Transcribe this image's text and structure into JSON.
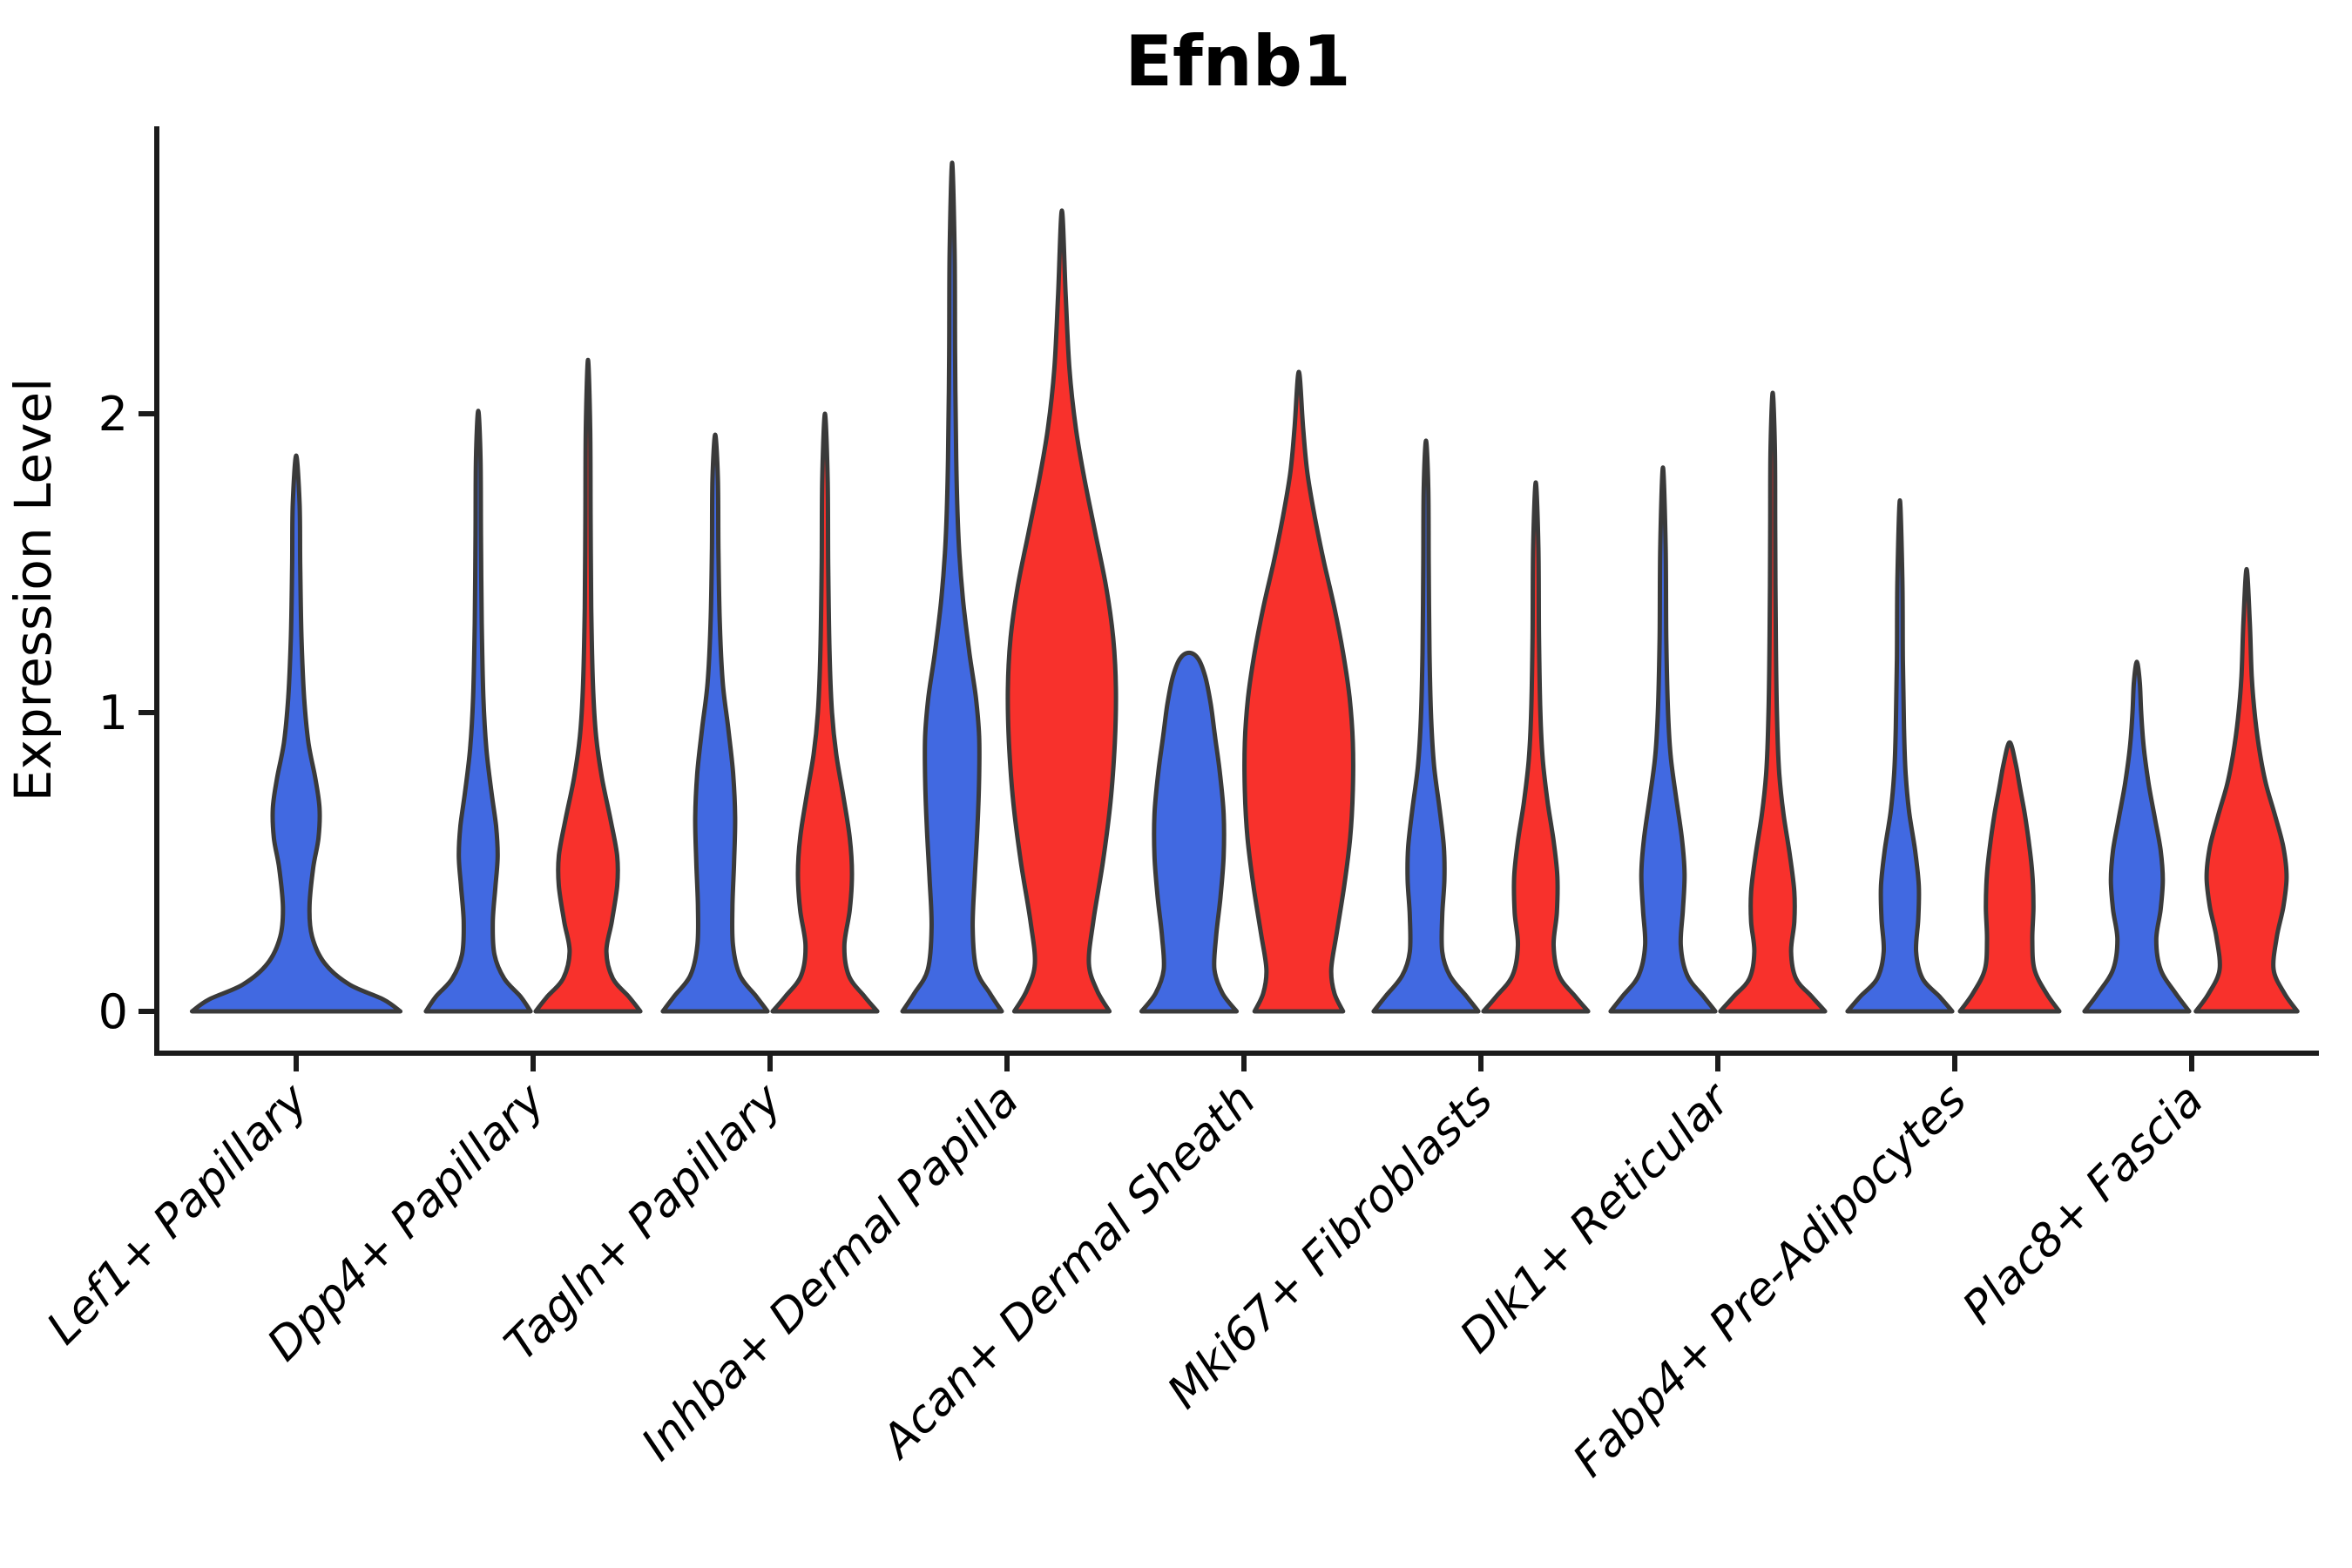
{
  "chart_data": {
    "type": "violin",
    "title": "Efnb1",
    "ylabel": "Expression Level",
    "xlabel": "",
    "ylim": [
      0,
      2.95
    ],
    "yticks": [
      0,
      1,
      2
    ],
    "grid": false,
    "legend_position": "none",
    "categories": [
      "Lef1+ Papillary",
      "Dpp4+ Papillary",
      "Tagln+ Papillary",
      "Inhba+ Dermal Papilla",
      "Acan+ Dermal Sheath",
      "Mki67+ Fibroblasts",
      "Dlk1+ Reticular",
      "Fabp4+ Pre-Adipocytes",
      "Plac8+ Fascia"
    ],
    "groups": [
      {
        "id": "group-blue",
        "color": "#4169e1"
      },
      {
        "id": "group-red",
        "color": "#f8312c"
      }
    ],
    "violins": [
      {
        "category": "Lef1+ Papillary",
        "group": "group-blue",
        "span": "full",
        "max": 1.86,
        "profile": [
          [
            0,
            0.98
          ],
          [
            0.04,
            0.82
          ],
          [
            0.09,
            0.5
          ],
          [
            0.16,
            0.27
          ],
          [
            0.25,
            0.15
          ],
          [
            0.35,
            0.125
          ],
          [
            0.48,
            0.16
          ],
          [
            0.58,
            0.21
          ],
          [
            0.68,
            0.22
          ],
          [
            0.78,
            0.18
          ],
          [
            0.9,
            0.115
          ],
          [
            1.05,
            0.075
          ],
          [
            1.25,
            0.05
          ],
          [
            1.5,
            0.038
          ],
          [
            1.7,
            0.032
          ],
          [
            1.86,
            0
          ]
        ]
      },
      {
        "category": "Dpp4+ Papillary",
        "group": "group-blue",
        "span": "half",
        "max": 2.01,
        "profile": [
          [
            0,
            0.97
          ],
          [
            0.05,
            0.78
          ],
          [
            0.11,
            0.48
          ],
          [
            0.19,
            0.3
          ],
          [
            0.3,
            0.27
          ],
          [
            0.42,
            0.32
          ],
          [
            0.52,
            0.36
          ],
          [
            0.62,
            0.33
          ],
          [
            0.74,
            0.24
          ],
          [
            0.88,
            0.15
          ],
          [
            1.05,
            0.095
          ],
          [
            1.3,
            0.065
          ],
          [
            1.6,
            0.05
          ],
          [
            1.85,
            0.042
          ],
          [
            2.01,
            0
          ]
        ]
      },
      {
        "category": "Dpp4+ Papillary",
        "group": "group-red",
        "span": "half",
        "max": 2.18,
        "profile": [
          [
            0,
            0.97
          ],
          [
            0.05,
            0.75
          ],
          [
            0.11,
            0.46
          ],
          [
            0.2,
            0.34
          ],
          [
            0.3,
            0.44
          ],
          [
            0.42,
            0.54
          ],
          [
            0.52,
            0.54
          ],
          [
            0.64,
            0.42
          ],
          [
            0.78,
            0.26
          ],
          [
            0.92,
            0.15
          ],
          [
            1.1,
            0.09
          ],
          [
            1.35,
            0.06
          ],
          [
            1.65,
            0.048
          ],
          [
            1.95,
            0.04
          ],
          [
            2.18,
            0
          ]
        ]
      },
      {
        "category": "Tagln+ Papillary",
        "group": "group-blue",
        "span": "half",
        "max": 1.93,
        "profile": [
          [
            0,
            0.97
          ],
          [
            0.05,
            0.76
          ],
          [
            0.12,
            0.46
          ],
          [
            0.22,
            0.33
          ],
          [
            0.35,
            0.32
          ],
          [
            0.5,
            0.35
          ],
          [
            0.65,
            0.37
          ],
          [
            0.8,
            0.33
          ],
          [
            0.95,
            0.24
          ],
          [
            1.1,
            0.14
          ],
          [
            1.3,
            0.085
          ],
          [
            1.55,
            0.06
          ],
          [
            1.78,
            0.05
          ],
          [
            1.93,
            0
          ]
        ]
      },
      {
        "category": "Tagln+ Papillary",
        "group": "group-red",
        "span": "half",
        "max": 2.0,
        "profile": [
          [
            0,
            0.97
          ],
          [
            0.05,
            0.73
          ],
          [
            0.12,
            0.44
          ],
          [
            0.22,
            0.36
          ],
          [
            0.34,
            0.46
          ],
          [
            0.46,
            0.5
          ],
          [
            0.58,
            0.46
          ],
          [
            0.72,
            0.34
          ],
          [
            0.86,
            0.21
          ],
          [
            1.0,
            0.13
          ],
          [
            1.2,
            0.085
          ],
          [
            1.5,
            0.06
          ],
          [
            1.78,
            0.05
          ],
          [
            2.0,
            0
          ]
        ]
      },
      {
        "category": "Inhba+ Dermal Papilla",
        "group": "group-blue",
        "span": "half",
        "max": 2.84,
        "profile": [
          [
            0,
            0.92
          ],
          [
            0.06,
            0.7
          ],
          [
            0.14,
            0.45
          ],
          [
            0.28,
            0.38
          ],
          [
            0.45,
            0.42
          ],
          [
            0.62,
            0.47
          ],
          [
            0.78,
            0.5
          ],
          [
            0.92,
            0.5
          ],
          [
            1.05,
            0.44
          ],
          [
            1.2,
            0.32
          ],
          [
            1.38,
            0.2
          ],
          [
            1.58,
            0.12
          ],
          [
            1.85,
            0.075
          ],
          [
            2.2,
            0.055
          ],
          [
            2.55,
            0.045
          ],
          [
            2.84,
            0
          ]
        ]
      },
      {
        "category": "Inhba+ Dermal Papilla",
        "group": "group-red",
        "span": "half",
        "max": 2.68,
        "profile": [
          [
            0,
            0.88
          ],
          [
            0.07,
            0.65
          ],
          [
            0.16,
            0.5
          ],
          [
            0.3,
            0.58
          ],
          [
            0.5,
            0.76
          ],
          [
            0.7,
            0.9
          ],
          [
            0.9,
            0.98
          ],
          [
            1.08,
            1.0
          ],
          [
            1.25,
            0.95
          ],
          [
            1.42,
            0.82
          ],
          [
            1.6,
            0.62
          ],
          [
            1.78,
            0.42
          ],
          [
            1.95,
            0.26
          ],
          [
            2.15,
            0.14
          ],
          [
            2.4,
            0.07
          ],
          [
            2.68,
            0
          ]
        ]
      },
      {
        "category": "Acan+ Dermal Sheath",
        "group": "group-blue",
        "span": "half",
        "max": 1.2,
        "profile": [
          [
            0,
            0.88
          ],
          [
            0.06,
            0.62
          ],
          [
            0.14,
            0.47
          ],
          [
            0.25,
            0.5
          ],
          [
            0.38,
            0.58
          ],
          [
            0.52,
            0.64
          ],
          [
            0.66,
            0.64
          ],
          [
            0.8,
            0.57
          ],
          [
            0.92,
            0.48
          ],
          [
            1.03,
            0.4
          ],
          [
            1.12,
            0.3
          ],
          [
            1.18,
            0.17
          ],
          [
            1.2,
            0
          ]
        ]
      },
      {
        "category": "Acan+ Dermal Sheath",
        "group": "group-red",
        "span": "half",
        "max": 2.14,
        "profile": [
          [
            0,
            0.82
          ],
          [
            0.06,
            0.66
          ],
          [
            0.14,
            0.6
          ],
          [
            0.26,
            0.7
          ],
          [
            0.42,
            0.84
          ],
          [
            0.58,
            0.95
          ],
          [
            0.74,
            1.0
          ],
          [
            0.9,
            1.0
          ],
          [
            1.05,
            0.94
          ],
          [
            1.2,
            0.82
          ],
          [
            1.35,
            0.66
          ],
          [
            1.5,
            0.47
          ],
          [
            1.65,
            0.3
          ],
          [
            1.8,
            0.16
          ],
          [
            1.95,
            0.08
          ],
          [
            2.14,
            0
          ]
        ]
      },
      {
        "category": "Mki67+ Fibroblasts",
        "group": "group-blue",
        "span": "half",
        "max": 1.91,
        "profile": [
          [
            0,
            0.97
          ],
          [
            0.05,
            0.75
          ],
          [
            0.12,
            0.44
          ],
          [
            0.2,
            0.3
          ],
          [
            0.32,
            0.3
          ],
          [
            0.44,
            0.34
          ],
          [
            0.55,
            0.33
          ],
          [
            0.68,
            0.25
          ],
          [
            0.82,
            0.15
          ],
          [
            0.98,
            0.095
          ],
          [
            1.2,
            0.065
          ],
          [
            1.5,
            0.05
          ],
          [
            1.75,
            0.042
          ],
          [
            1.91,
            0
          ]
        ]
      },
      {
        "category": "Mki67+ Fibroblasts",
        "group": "group-red",
        "span": "half",
        "max": 1.77,
        "profile": [
          [
            0,
            0.97
          ],
          [
            0.05,
            0.73
          ],
          [
            0.12,
            0.43
          ],
          [
            0.22,
            0.33
          ],
          [
            0.33,
            0.39
          ],
          [
            0.45,
            0.4
          ],
          [
            0.57,
            0.33
          ],
          [
            0.7,
            0.22
          ],
          [
            0.84,
            0.13
          ],
          [
            1.0,
            0.085
          ],
          [
            1.25,
            0.06
          ],
          [
            1.55,
            0.048
          ],
          [
            1.77,
            0
          ]
        ]
      },
      {
        "category": "Dlk1+ Reticular",
        "group": "group-blue",
        "span": "half",
        "max": 1.82,
        "profile": [
          [
            0,
            0.97
          ],
          [
            0.05,
            0.75
          ],
          [
            0.12,
            0.45
          ],
          [
            0.22,
            0.33
          ],
          [
            0.34,
            0.37
          ],
          [
            0.46,
            0.4
          ],
          [
            0.58,
            0.35
          ],
          [
            0.72,
            0.24
          ],
          [
            0.86,
            0.14
          ],
          [
            1.02,
            0.09
          ],
          [
            1.25,
            0.062
          ],
          [
            1.55,
            0.05
          ],
          [
            1.82,
            0
          ]
        ]
      },
      {
        "category": "Dlk1+ Reticular",
        "group": "group-red",
        "span": "half",
        "max": 2.07,
        "profile": [
          [
            0,
            0.97
          ],
          [
            0.05,
            0.72
          ],
          [
            0.11,
            0.43
          ],
          [
            0.2,
            0.34
          ],
          [
            0.3,
            0.4
          ],
          [
            0.4,
            0.4
          ],
          [
            0.52,
            0.32
          ],
          [
            0.66,
            0.2
          ],
          [
            0.8,
            0.12
          ],
          [
            0.98,
            0.08
          ],
          [
            1.25,
            0.058
          ],
          [
            1.6,
            0.046
          ],
          [
            1.88,
            0.04
          ],
          [
            2.07,
            0
          ]
        ]
      },
      {
        "category": "Fabp4+ Pre-Adipocytes",
        "group": "group-blue",
        "span": "half",
        "max": 1.71,
        "profile": [
          [
            0,
            0.97
          ],
          [
            0.05,
            0.73
          ],
          [
            0.11,
            0.42
          ],
          [
            0.2,
            0.3
          ],
          [
            0.31,
            0.34
          ],
          [
            0.42,
            0.35
          ],
          [
            0.54,
            0.28
          ],
          [
            0.67,
            0.17
          ],
          [
            0.8,
            0.105
          ],
          [
            0.95,
            0.075
          ],
          [
            1.18,
            0.055
          ],
          [
            1.45,
            0.045
          ],
          [
            1.71,
            0
          ]
        ]
      },
      {
        "category": "Fabp4+ Pre-Adipocytes",
        "group": "group-red",
        "span": "half",
        "max": 0.9,
        "profile": [
          [
            0,
            0.92
          ],
          [
            0.06,
            0.68
          ],
          [
            0.14,
            0.46
          ],
          [
            0.24,
            0.42
          ],
          [
            0.35,
            0.44
          ],
          [
            0.46,
            0.42
          ],
          [
            0.56,
            0.36
          ],
          [
            0.66,
            0.28
          ],
          [
            0.75,
            0.19
          ],
          [
            0.83,
            0.11
          ],
          [
            0.9,
            0
          ]
        ]
      },
      {
        "category": "Plac8+ Fascia",
        "group": "group-blue",
        "span": "half",
        "max": 1.17,
        "profile": [
          [
            0,
            0.97
          ],
          [
            0.06,
            0.72
          ],
          [
            0.14,
            0.44
          ],
          [
            0.24,
            0.36
          ],
          [
            0.34,
            0.44
          ],
          [
            0.44,
            0.48
          ],
          [
            0.54,
            0.44
          ],
          [
            0.65,
            0.33
          ],
          [
            0.76,
            0.22
          ],
          [
            0.88,
            0.13
          ],
          [
            1.0,
            0.08
          ],
          [
            1.1,
            0.055
          ],
          [
            1.17,
            0
          ]
        ]
      },
      {
        "category": "Plac8+ Fascia",
        "group": "group-red",
        "span": "half",
        "max": 1.48,
        "profile": [
          [
            0,
            0.94
          ],
          [
            0.06,
            0.7
          ],
          [
            0.14,
            0.5
          ],
          [
            0.25,
            0.56
          ],
          [
            0.35,
            0.68
          ],
          [
            0.45,
            0.74
          ],
          [
            0.55,
            0.68
          ],
          [
            0.66,
            0.52
          ],
          [
            0.76,
            0.36
          ],
          [
            0.86,
            0.25
          ],
          [
            0.98,
            0.16
          ],
          [
            1.12,
            0.095
          ],
          [
            1.3,
            0.06
          ],
          [
            1.48,
            0
          ]
        ]
      }
    ]
  },
  "style": {
    "violin_outline": "#3a3a3a",
    "axis_color": "#1b1b1b",
    "text_color": "#000000",
    "background": "#ffffff"
  }
}
